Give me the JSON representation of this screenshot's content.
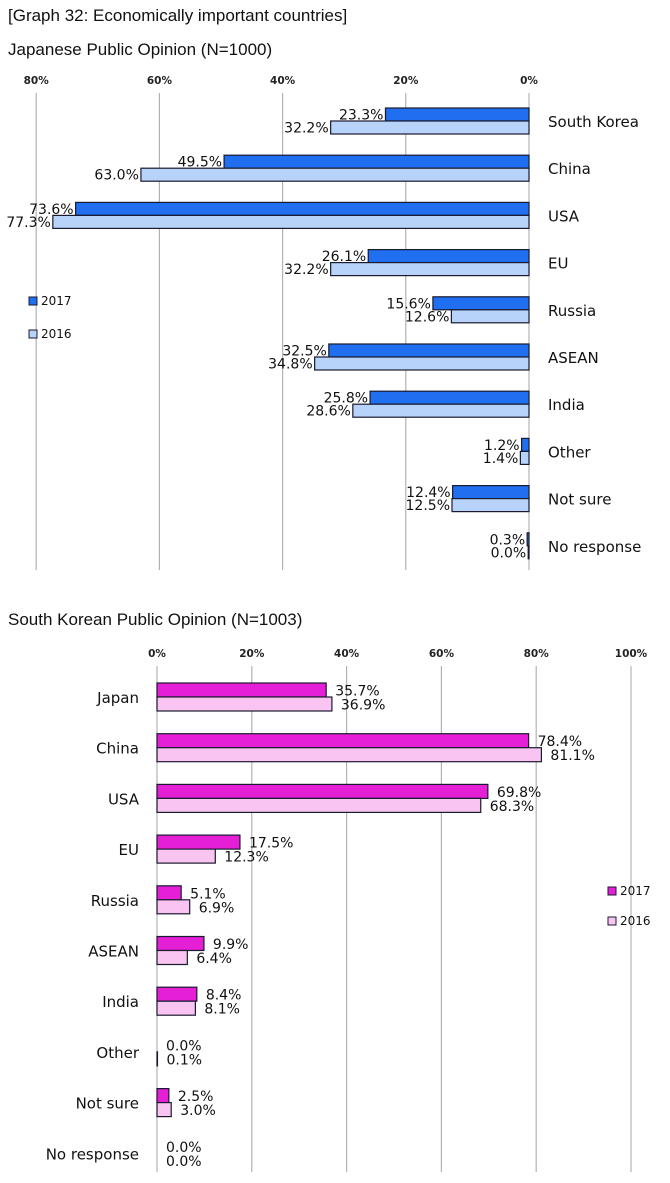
{
  "graph_title": "[Graph 32: Economically important countries]",
  "colors": {
    "jp_2017": "#1f6ff0",
    "jp_2016": "#b7d3fa",
    "kr_2017": "#e51fd6",
    "kr_2016": "#f9c4f2",
    "grid": "#b3b3b3",
    "bar_stroke": "#1a1a2e"
  },
  "chart_data": [
    {
      "type": "bar",
      "orientation": "horizontal-reversed",
      "title": "Japanese Public Opinion (N=1000)",
      "xlim": [
        0,
        80
      ],
      "xticks": [
        {
          "value": 80,
          "label": "80%"
        },
        {
          "value": 60,
          "label": "60%"
        },
        {
          "value": 40,
          "label": "40%"
        },
        {
          "value": 20,
          "label": "20%"
        },
        {
          "value": 0,
          "label": "0%"
        }
      ],
      "categories": [
        "South Korea",
        "China",
        "USA",
        "EU",
        "Russia",
        "ASEAN",
        "India",
        "Other",
        "Not sure",
        "No response"
      ],
      "legend": "left",
      "series": [
        {
          "name": "2017",
          "values": [
            23.3,
            49.5,
            73.6,
            26.1,
            15.6,
            32.5,
            25.8,
            1.2,
            12.4,
            0.3
          ],
          "labels": [
            "23.3%",
            "49.5%",
            "73.6%",
            "26.1%",
            "15.6%",
            "32.5%",
            "25.8%",
            "1.2%",
            "12.4%",
            "0.3%"
          ]
        },
        {
          "name": "2016",
          "values": [
            32.2,
            63.0,
            77.3,
            32.2,
            12.6,
            34.8,
            28.6,
            1.4,
            12.5,
            0.0
          ],
          "labels": [
            "32.2%",
            "63.0%",
            "77.3%",
            "32.2%",
            "12.6%",
            "34.8%",
            "28.6%",
            "1.4%",
            "12.5%",
            "0.0%"
          ]
        }
      ]
    },
    {
      "type": "bar",
      "orientation": "horizontal",
      "title": "South Korean Public Opinion (N=1003)",
      "xlim": [
        0,
        100
      ],
      "xticks": [
        {
          "value": 0,
          "label": "0%"
        },
        {
          "value": 20,
          "label": "20%"
        },
        {
          "value": 40,
          "label": "40%"
        },
        {
          "value": 60,
          "label": "60%"
        },
        {
          "value": 80,
          "label": "80%"
        },
        {
          "value": 100,
          "label": "100%"
        }
      ],
      "categories": [
        "Japan",
        "China",
        "USA",
        "EU",
        "Russia",
        "ASEAN",
        "India",
        "Other",
        "Not sure",
        "No response"
      ],
      "legend": "right",
      "series": [
        {
          "name": "2017",
          "values": [
            35.7,
            78.4,
            69.8,
            17.5,
            5.1,
            9.9,
            8.4,
            0.0,
            2.5,
            0.0
          ],
          "labels": [
            "35.7%",
            "78.4%",
            "69.8%",
            "17.5%",
            "5.1%",
            "9.9%",
            "8.4%",
            "0.0%",
            "2.5%",
            "0.0%"
          ]
        },
        {
          "name": "2016",
          "values": [
            36.9,
            81.1,
            68.3,
            12.3,
            6.9,
            6.4,
            8.1,
            0.1,
            3.0,
            0.0
          ],
          "labels": [
            "36.9%",
            "81.1%",
            "68.3%",
            "12.3%",
            "6.9%",
            "6.4%",
            "8.1%",
            "0.1%",
            "3.0%",
            "0.0%"
          ]
        }
      ]
    }
  ]
}
